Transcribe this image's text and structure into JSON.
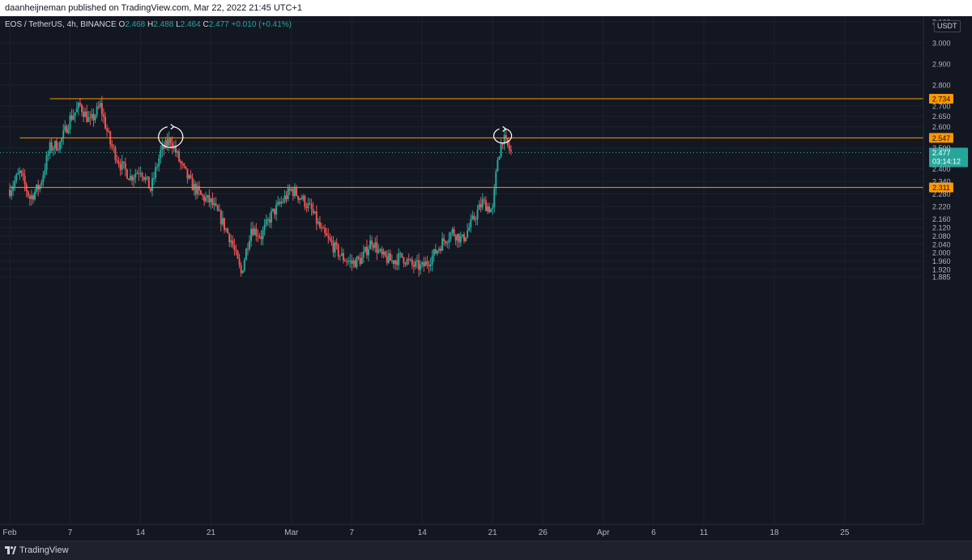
{
  "header": {
    "published_line": "daanheijneman published on TradingView.com, Mar 22, 2022 21:45 UTC+1"
  },
  "legend": {
    "symbol": "EOS / TetherUS, 4h, BINANCE",
    "o_label": "O",
    "o_value": "2.468",
    "h_label": "H",
    "h_value": "2.488",
    "l_label": "L",
    "l_value": "2.464",
    "c_label": "C",
    "c_value": "2.477",
    "change": "+0.010 (+0.41%)"
  },
  "footer": {
    "brand": "TradingView"
  },
  "colors": {
    "background": "#131722",
    "up": "#26a69a",
    "down": "#ef5350",
    "level_line": "#ff9800",
    "grid": "#1e222d",
    "axis_text": "#b2b5be"
  },
  "chart_data": {
    "type": "candlestick",
    "symbol": "EOS / TetherUS",
    "interval": "4h",
    "exchange": "BINANCE",
    "currency": "USDT",
    "ylim": [
      1.85,
      3.1
    ],
    "y_ticks": [
      "3.100",
      "3.000",
      "2.900",
      "2.800",
      "2.700",
      "2.650",
      "2.600",
      "2.500",
      "2.400",
      "2.340",
      "2.280",
      "2.220",
      "2.160",
      "2.120",
      "2.080",
      "2.040",
      "2.000",
      "1.960",
      "1.920",
      "1.885"
    ],
    "y_tick_values": [
      3.1,
      3.0,
      2.9,
      2.8,
      2.7,
      2.65,
      2.6,
      2.5,
      2.4,
      2.34,
      2.28,
      2.22,
      2.16,
      2.12,
      2.08,
      2.04,
      2.0,
      1.96,
      1.92,
      1.885
    ],
    "x_ticks": [
      "Feb",
      "7",
      "14",
      "21",
      "Mar",
      "7",
      "14",
      "21",
      "26",
      "Apr",
      "6",
      "11",
      "18",
      "25"
    ],
    "x_tick_dates": [
      "2022-02-01",
      "2022-02-07",
      "2022-02-14",
      "2022-02-21",
      "2022-03-01",
      "2022-03-07",
      "2022-03-14",
      "2022-03-21",
      "2022-03-26",
      "2022-04-01",
      "2022-04-06",
      "2022-04-11",
      "2022-04-18",
      "2022-04-25"
    ],
    "x_start": "2022-02-01",
    "last_bar": "2022-03-22",
    "price_path": [
      [
        "2022-02-01",
        2.3
      ],
      [
        "2022-02-02",
        2.38
      ],
      [
        "2022-02-03",
        2.26
      ],
      [
        "2022-02-04",
        2.32
      ],
      [
        "2022-02-05",
        2.5
      ],
      [
        "2022-02-06",
        2.52
      ],
      [
        "2022-02-07",
        2.64
      ],
      [
        "2022-02-08",
        2.7
      ],
      [
        "2022-02-09",
        2.62
      ],
      [
        "2022-02-10",
        2.7
      ],
      [
        "2022-02-11",
        2.52
      ],
      [
        "2022-02-12",
        2.42
      ],
      [
        "2022-02-13",
        2.36
      ],
      [
        "2022-02-14",
        2.4
      ],
      [
        "2022-02-15",
        2.3
      ],
      [
        "2022-02-16",
        2.48
      ],
      [
        "2022-02-17",
        2.54
      ],
      [
        "2022-02-18",
        2.42
      ],
      [
        "2022-02-19",
        2.33
      ],
      [
        "2022-02-20",
        2.27
      ],
      [
        "2022-02-21",
        2.24
      ],
      [
        "2022-02-22",
        2.16
      ],
      [
        "2022-02-23",
        2.06
      ],
      [
        "2022-02-24",
        1.9
      ],
      [
        "2022-02-25",
        2.12
      ],
      [
        "2022-02-26",
        2.08
      ],
      [
        "2022-02-27",
        2.18
      ],
      [
        "2022-02-28",
        2.24
      ],
      [
        "2022-03-01",
        2.3
      ],
      [
        "2022-03-02",
        2.26
      ],
      [
        "2022-03-03",
        2.2
      ],
      [
        "2022-03-04",
        2.1
      ],
      [
        "2022-03-05",
        2.04
      ],
      [
        "2022-03-06",
        1.98
      ],
      [
        "2022-03-07",
        1.95
      ],
      [
        "2022-03-08",
        1.97
      ],
      [
        "2022-03-09",
        2.06
      ],
      [
        "2022-03-10",
        1.98
      ],
      [
        "2022-03-11",
        1.96
      ],
      [
        "2022-03-12",
        1.98
      ],
      [
        "2022-03-13",
        1.94
      ],
      [
        "2022-03-14",
        1.93
      ],
      [
        "2022-03-15",
        1.98
      ],
      [
        "2022-03-16",
        2.05
      ],
      [
        "2022-03-17",
        2.1
      ],
      [
        "2022-03-18",
        2.06
      ],
      [
        "2022-03-19",
        2.15
      ],
      [
        "2022-03-20",
        2.24
      ],
      [
        "2022-03-21",
        2.2
      ],
      [
        "2022-03-21T12:00",
        2.45
      ],
      [
        "2022-03-22",
        2.547
      ],
      [
        "2022-03-22T20:00",
        2.477
      ]
    ],
    "levels": [
      {
        "price": 2.734,
        "label": "2.734",
        "from": "2022-02-05"
      },
      {
        "price": 2.547,
        "label": "2.547",
        "from": "2022-02-02"
      },
      {
        "price": 2.311,
        "label": "2.311",
        "from": "2022-02-01"
      }
    ],
    "current_price": {
      "price": 2.477,
      "label": "2.477",
      "countdown": "03:14:12"
    },
    "annotations": [
      {
        "type": "circle-arrow",
        "date": "2022-02-17",
        "price": 2.55
      },
      {
        "type": "circle-arrow",
        "date": "2022-03-22",
        "price": 2.555
      }
    ]
  }
}
